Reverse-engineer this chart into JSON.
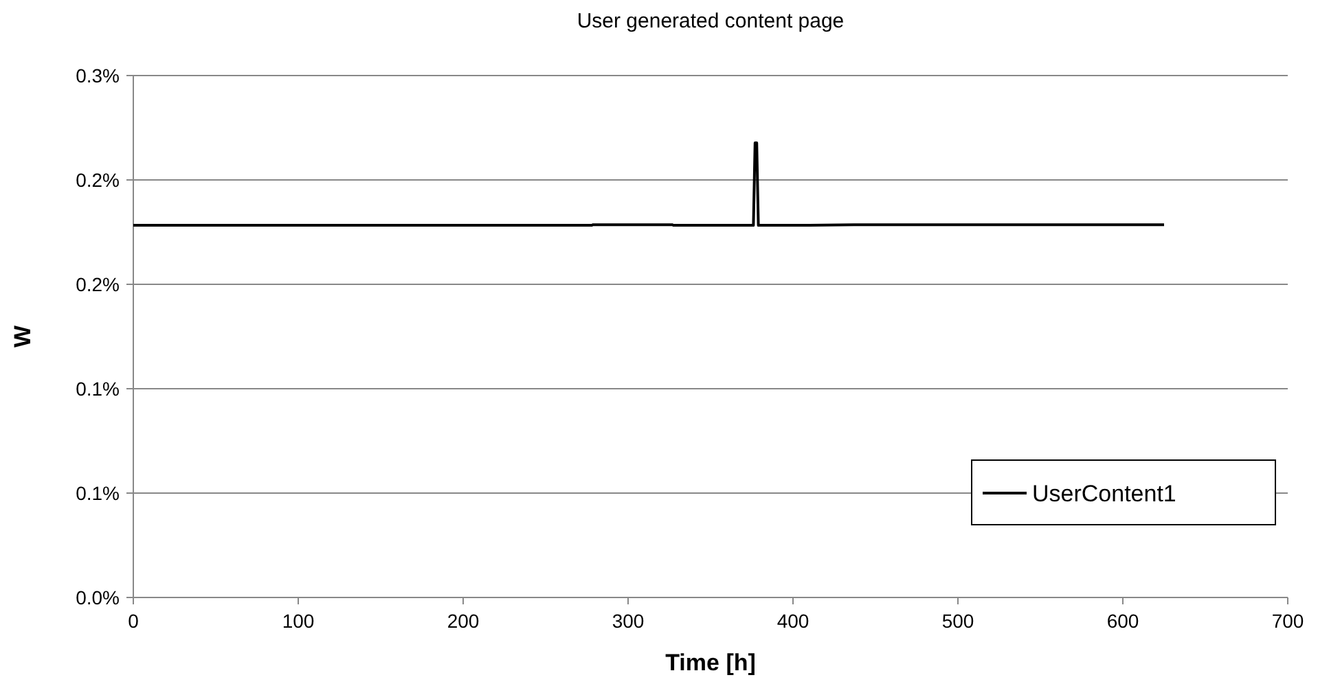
{
  "chart_data": {
    "type": "line",
    "title": "User generated content page",
    "xlabel": "Time [h]",
    "ylabel": "W",
    "x": [
      0,
      278,
      278.5,
      327,
      327.5,
      376,
      377,
      378,
      379,
      410,
      437,
      625
    ],
    "series": [
      {
        "name": "UserContent1",
        "color": "#000000",
        "values": [
          0.2139,
          0.2139,
          0.2142,
          0.2142,
          0.2139,
          0.2139,
          0.2613,
          0.2613,
          0.2139,
          0.2139,
          0.2142,
          0.2142
        ]
      }
    ],
    "xlim": [
      0,
      700
    ],
    "xticks": [
      0,
      100,
      200,
      300,
      400,
      500,
      600,
      700
    ],
    "ylim": [
      0,
      0.3
    ],
    "yticks": [
      {
        "value": 0,
        "label": "0.0%"
      },
      {
        "value": 0.06,
        "label": "0.1%"
      },
      {
        "value": 0.12,
        "label": "0.1%"
      },
      {
        "value": 0.18,
        "label": "0.2%"
      },
      {
        "value": 0.24,
        "label": "0.2%"
      },
      {
        "value": 0.3,
        "label": "0.3%"
      }
    ],
    "grid": "y",
    "legend": "right",
    "marker": "none",
    "line_style": "solid"
  }
}
